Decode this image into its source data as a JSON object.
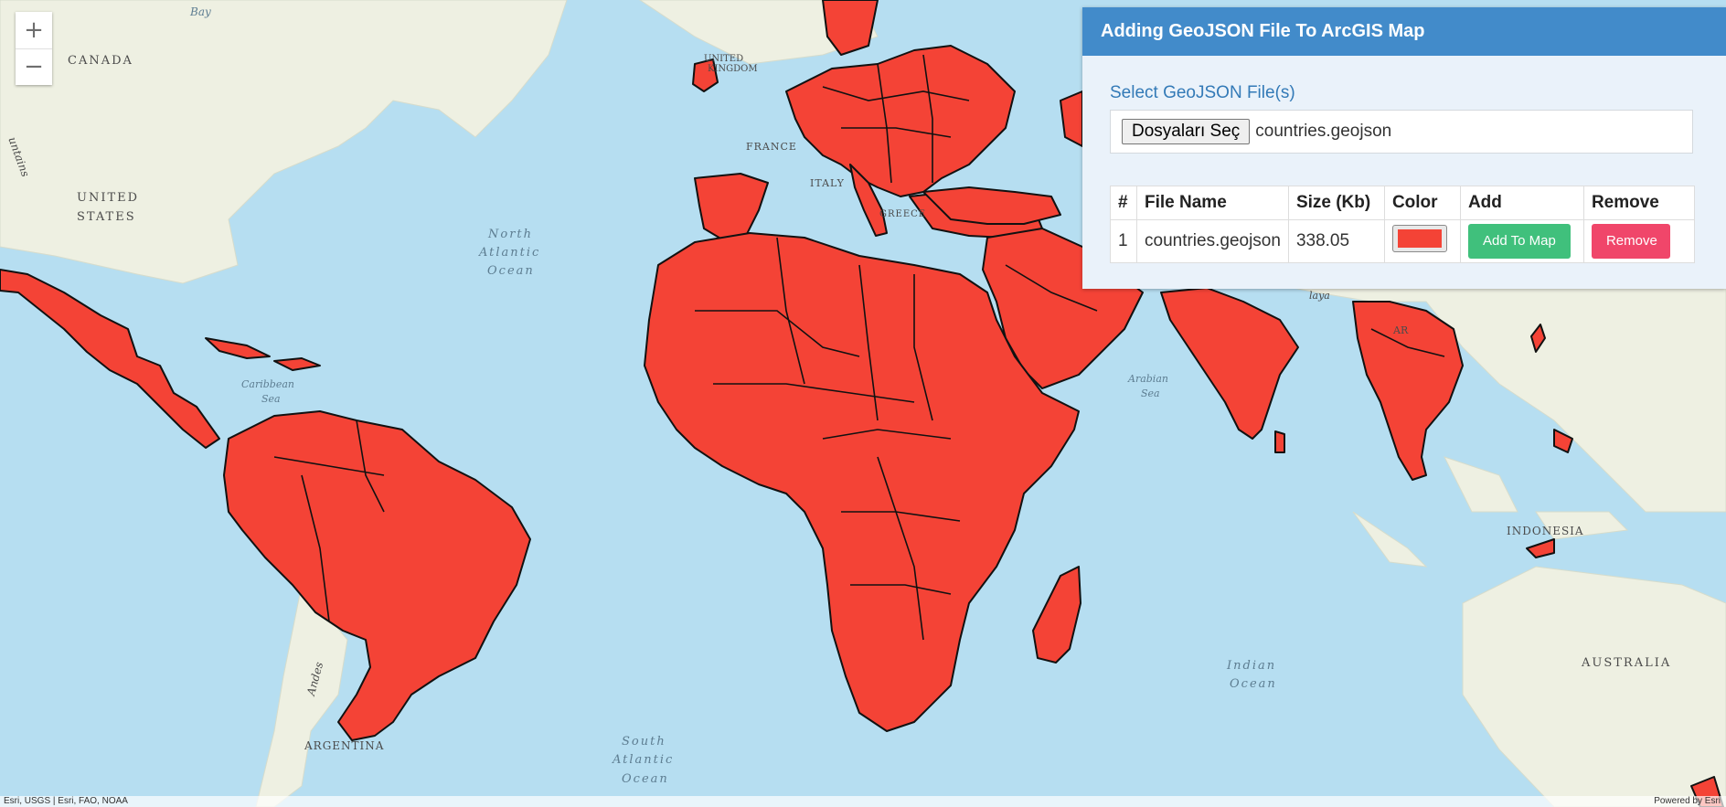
{
  "map": {
    "land_color": "#f2efe6",
    "ocean_color": "#bfe3f2",
    "feature_fill": "#f44336",
    "feature_stroke": "#111111",
    "zoom_in_icon": "+",
    "zoom_out_icon": "−",
    "labels": {
      "canada": "CANADA",
      "bay": "Bay",
      "united_kingdom_1": "UNITED",
      "united_kingdom_2": "KINGDOM",
      "france": "FRANCE",
      "italy": "ITALY",
      "greece": "GREECE",
      "united_states_1": "UNITED",
      "united_states_2": "STATES",
      "mountains": "untains",
      "north_atlantic_1": "North",
      "north_atlantic_2": "Atlantic",
      "north_atlantic_3": "Ocean",
      "caribbean_1": "Caribbean",
      "caribbean_2": "Sea",
      "arabian_1": "Arabian",
      "arabian_2": "Sea",
      "indonesia": "INDONESIA",
      "indian_1": "Indian",
      "indian_2": "Ocean",
      "australia": "AUSTRALIA",
      "south_atlantic_1": "South",
      "south_atlantic_2": "Atlantic",
      "south_atlantic_3": "Ocean",
      "argentina": "ARGENTINA",
      "andes": "Andes",
      "myanmar_fragment": "AR",
      "himalaya_fragment": "laya"
    },
    "attribution_left": "Esri, USGS | Esri, FAO, NOAA",
    "attribution_right": "Powered by Esri"
  },
  "panel": {
    "title": "Adding GeoJSON File To ArcGIS Map",
    "select_label": "Select GeoJSON File(s)",
    "file_button": "Dosyaları Seç",
    "file_selected": "countries.geojson",
    "table": {
      "headers": [
        "#",
        "File Name",
        "Size (Kb)",
        "Color",
        "Add",
        "Remove"
      ],
      "rows": [
        {
          "index": "1",
          "file_name": "countries.geojson",
          "size": "338.05",
          "color": "#f44336",
          "add_label": "Add To Map",
          "remove_label": "Remove"
        }
      ]
    },
    "header_color": "#428bca",
    "add_color": "#40c07c",
    "remove_color": "#f0466a"
  }
}
